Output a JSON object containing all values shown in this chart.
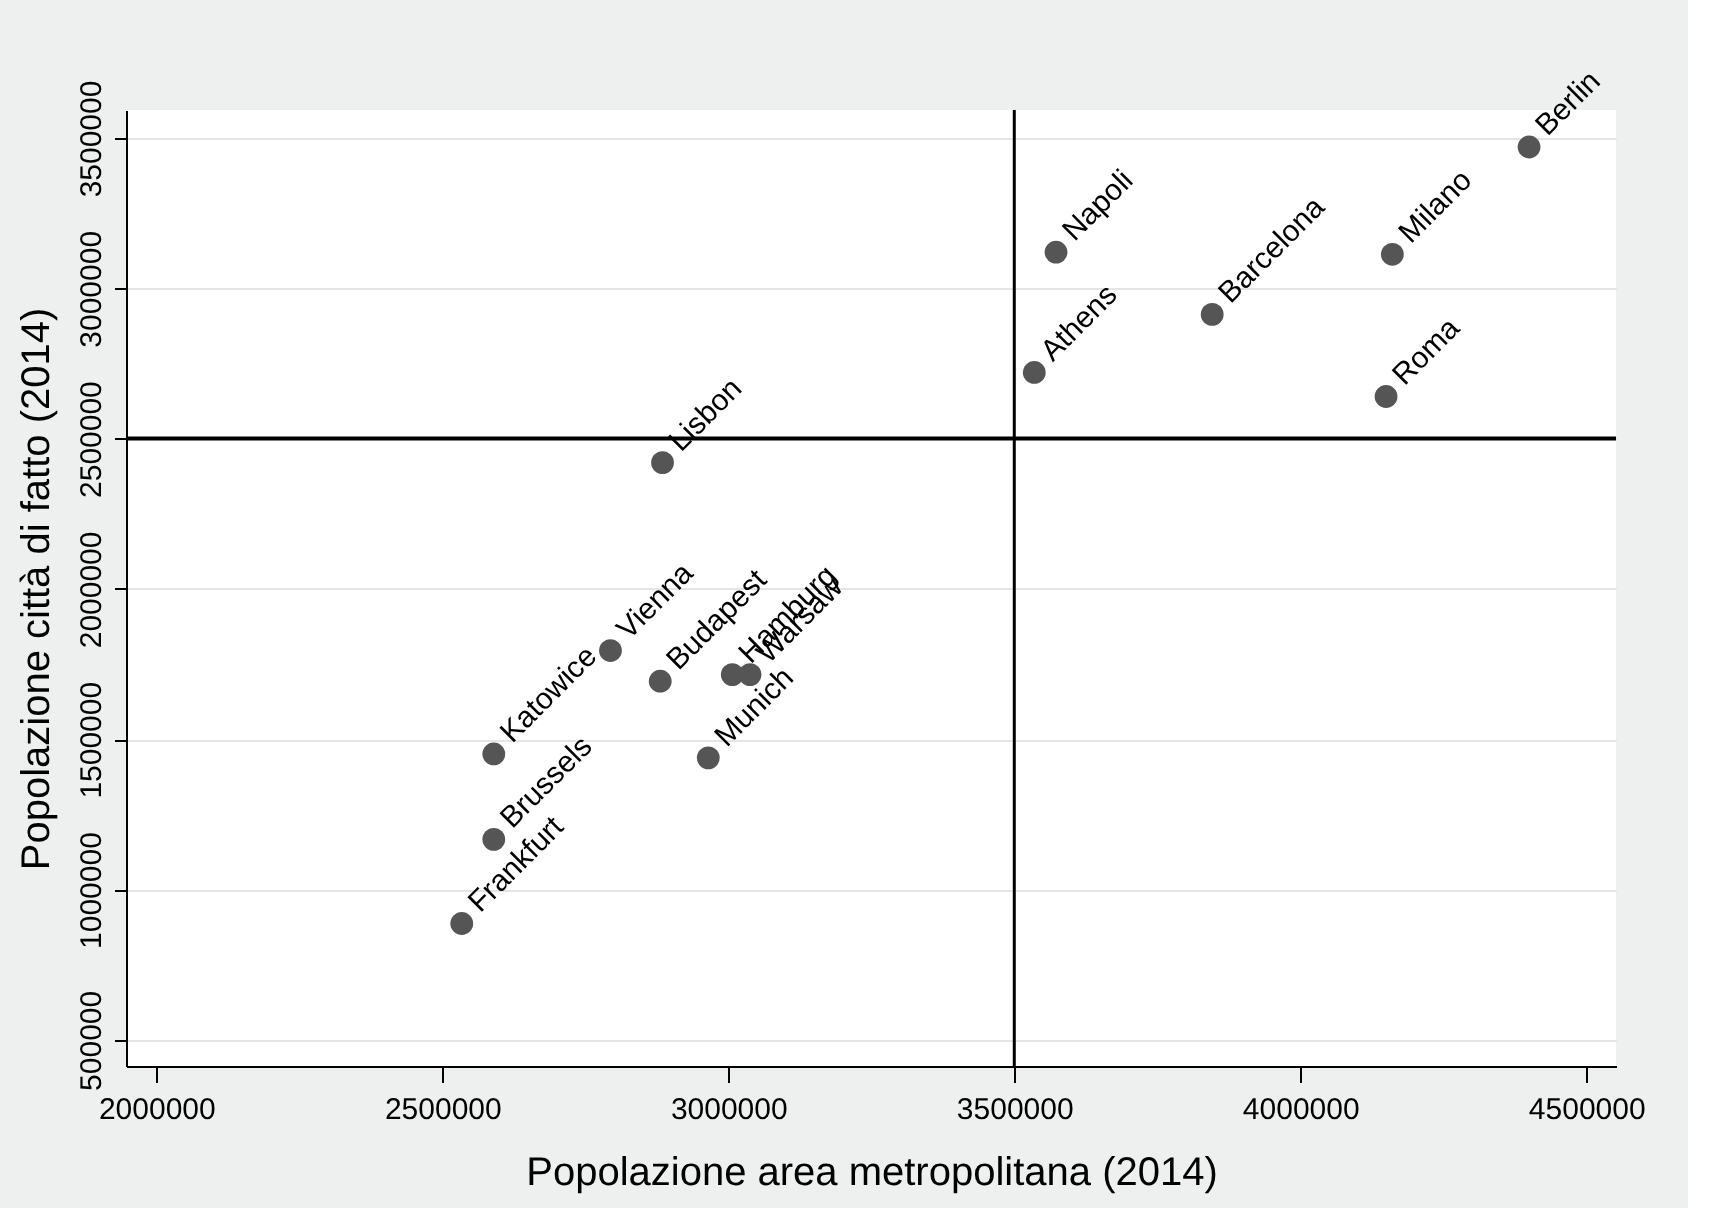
{
  "chart_data": {
    "type": "scatter",
    "xlabel": "Popolazione area metropolitana (2014)",
    "ylabel": "Popolazione città di fatto (2014)",
    "x": [
      4400000,
      3573000,
      4161000,
      3846000,
      3535000,
      4150000,
      2885000,
      2794000,
      2881000,
      3007000,
      3038000,
      2590000,
      2965000,
      2590000,
      2534000
    ],
    "series": [
      {
        "color": "#555555",
        "values": [
          3470000,
          3120000,
          3113000,
          2913000,
          2720000,
          2640000,
          2420000,
          1795000,
          1693000,
          1715000,
          1715000,
          1451000,
          1438000,
          1167000,
          887000
        ]
      }
    ],
    "marker": "circle",
    "xlim": [
      1947000,
      4552000
    ],
    "ylim": [
      413000,
      3593000
    ],
    "xticks": [
      2000000,
      2500000,
      3000000,
      3500000,
      4000000,
      4500000
    ],
    "yticks": [
      500000,
      1000000,
      1500000,
      2000000,
      2500000,
      3000000,
      3500000
    ],
    "grid": "y",
    "ref_lines": [
      {
        "axis": "x",
        "value": 3500000,
        "color": "#000000"
      },
      {
        "axis": "y",
        "value": 2500000,
        "color": "#000000"
      }
    ],
    "annotations": [
      {
        "text": "Berlin",
        "x": 4400000,
        "y": 3470000
      },
      {
        "text": "Napoli",
        "x": 3573000,
        "y": 3120000
      },
      {
        "text": "Milano",
        "x": 4161000,
        "y": 3113000
      },
      {
        "text": "Barcelona",
        "x": 3846000,
        "y": 2913000
      },
      {
        "text": "Athens",
        "x": 3535000,
        "y": 2720000
      },
      {
        "text": "Roma",
        "x": 4150000,
        "y": 2640000
      },
      {
        "text": "Lisbon",
        "x": 2885000,
        "y": 2420000
      },
      {
        "text": "Vienna",
        "x": 2794000,
        "y": 1795000
      },
      {
        "text": "Budapest",
        "x": 2881000,
        "y": 1693000
      },
      {
        "text": "Hamburg",
        "x": 3007000,
        "y": 1715000
      },
      {
        "text": "Warsaw",
        "x": 3038000,
        "y": 1715000
      },
      {
        "text": "Katowice",
        "x": 2590000,
        "y": 1451000
      },
      {
        "text": "Munich",
        "x": 2965000,
        "y": 1438000
      },
      {
        "text": "Brussels",
        "x": 2590000,
        "y": 1167000
      },
      {
        "text": "Frankfurt",
        "x": 2534000,
        "y": 887000
      }
    ]
  }
}
